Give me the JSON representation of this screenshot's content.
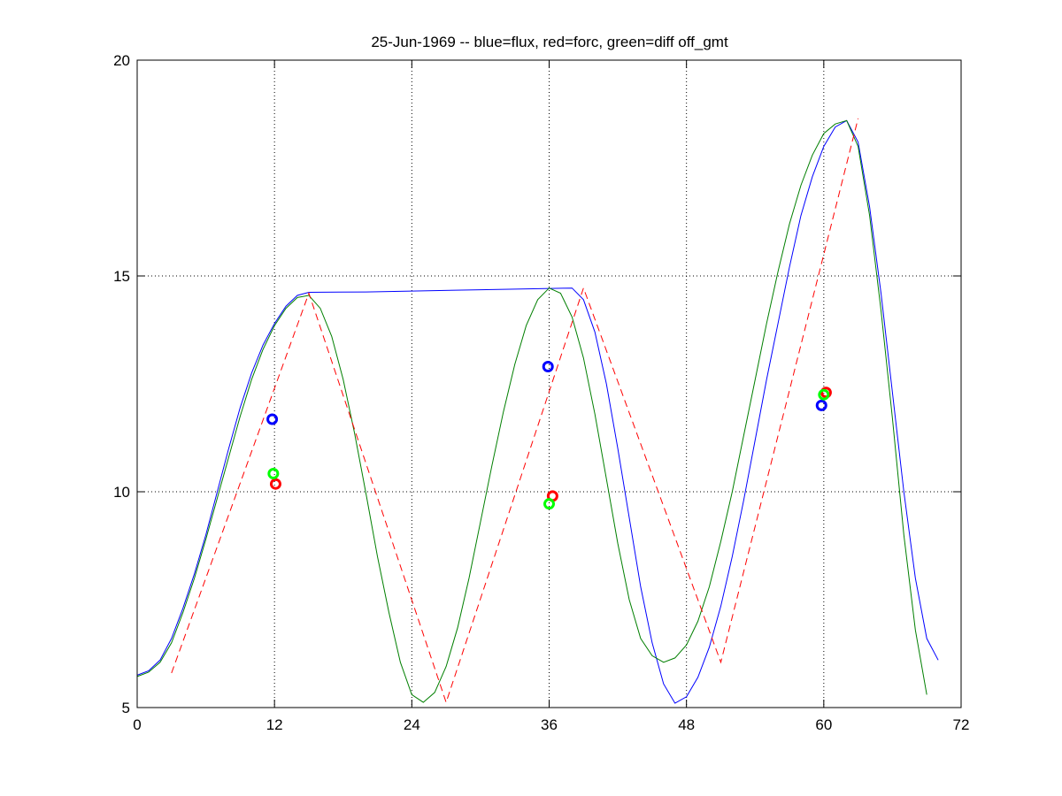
{
  "chart_data": {
    "type": "line",
    "title": "25-Jun-1969 -- blue=flux, red=forc, green=diff off_gmt",
    "xlabel": "",
    "ylabel": "",
    "xlim": [
      0,
      72
    ],
    "ylim": [
      5,
      20
    ],
    "xticks": [
      0,
      12,
      24,
      36,
      48,
      60,
      72
    ],
    "yticks": [
      5,
      10,
      15,
      20
    ],
    "grid": true,
    "grid_style": "dotted",
    "colors": {
      "blue": "#0000ff",
      "red": "#ff0000",
      "green": "#007f00",
      "green_marker": "#00ff00"
    },
    "series": [
      {
        "color": "#0000ff",
        "style": "solid",
        "points": [
          [
            0,
            5.75
          ],
          [
            1,
            5.85
          ],
          [
            2,
            6.1
          ],
          [
            3,
            6.6
          ],
          [
            4,
            7.3
          ],
          [
            5,
            8.1
          ],
          [
            6,
            9.0
          ],
          [
            7,
            10.0
          ],
          [
            8,
            11.0
          ],
          [
            9,
            11.95
          ],
          [
            10,
            12.75
          ],
          [
            11,
            13.4
          ],
          [
            12,
            13.9
          ],
          [
            13,
            14.3
          ],
          [
            14,
            14.55
          ],
          [
            15,
            14.62
          ],
          [
            20,
            14.63
          ],
          [
            30,
            14.68
          ],
          [
            38,
            14.72
          ],
          [
            39,
            14.45
          ],
          [
            40,
            13.7
          ],
          [
            41,
            12.5
          ],
          [
            42,
            11.0
          ],
          [
            43,
            9.4
          ],
          [
            44,
            7.8
          ],
          [
            45,
            6.5
          ],
          [
            46,
            5.55
          ],
          [
            47,
            5.1
          ],
          [
            48,
            5.25
          ],
          [
            49,
            5.7
          ],
          [
            50,
            6.4
          ],
          [
            51,
            7.35
          ],
          [
            52,
            8.5
          ],
          [
            53,
            9.8
          ],
          [
            54,
            11.2
          ],
          [
            55,
            12.6
          ],
          [
            56,
            13.9
          ],
          [
            57,
            15.2
          ],
          [
            58,
            16.4
          ],
          [
            59,
            17.3
          ],
          [
            60,
            18.0
          ],
          [
            61,
            18.45
          ],
          [
            62,
            18.6
          ],
          [
            63,
            18.1
          ],
          [
            64,
            16.6
          ],
          [
            65,
            14.6
          ],
          [
            66,
            12.3
          ],
          [
            67,
            10.0
          ],
          [
            68,
            8.0
          ],
          [
            69,
            6.6
          ],
          [
            70,
            6.1
          ]
        ]
      },
      {
        "color": "#007f00",
        "style": "solid",
        "points": [
          [
            0,
            5.72
          ],
          [
            1,
            5.82
          ],
          [
            2,
            6.05
          ],
          [
            3,
            6.5
          ],
          [
            4,
            7.2
          ],
          [
            5,
            8.0
          ],
          [
            6,
            8.9
          ],
          [
            7,
            9.85
          ],
          [
            8,
            10.8
          ],
          [
            9,
            11.75
          ],
          [
            10,
            12.6
          ],
          [
            11,
            13.3
          ],
          [
            12,
            13.85
          ],
          [
            13,
            14.25
          ],
          [
            14,
            14.5
          ],
          [
            15,
            14.55
          ],
          [
            16,
            14.25
          ],
          [
            17,
            13.6
          ],
          [
            18,
            12.6
          ],
          [
            19,
            11.35
          ],
          [
            20,
            9.95
          ],
          [
            21,
            8.5
          ],
          [
            22,
            7.2
          ],
          [
            23,
            6.05
          ],
          [
            24,
            5.3
          ],
          [
            25,
            5.12
          ],
          [
            26,
            5.35
          ],
          [
            27,
            5.95
          ],
          [
            28,
            6.85
          ],
          [
            29,
            8.0
          ],
          [
            30,
            9.3
          ],
          [
            31,
            10.6
          ],
          [
            32,
            11.85
          ],
          [
            33,
            12.95
          ],
          [
            34,
            13.85
          ],
          [
            35,
            14.45
          ],
          [
            36,
            14.72
          ],
          [
            37,
            14.6
          ],
          [
            38,
            14.05
          ],
          [
            39,
            13.1
          ],
          [
            40,
            11.8
          ],
          [
            41,
            10.3
          ],
          [
            42,
            8.8
          ],
          [
            43,
            7.5
          ],
          [
            44,
            6.6
          ],
          [
            45,
            6.2
          ],
          [
            46,
            6.05
          ],
          [
            47,
            6.15
          ],
          [
            48,
            6.45
          ],
          [
            49,
            7.0
          ],
          [
            50,
            7.8
          ],
          [
            51,
            8.85
          ],
          [
            52,
            10.0
          ],
          [
            53,
            11.3
          ],
          [
            54,
            12.6
          ],
          [
            55,
            13.9
          ],
          [
            56,
            15.1
          ],
          [
            57,
            16.2
          ],
          [
            58,
            17.1
          ],
          [
            59,
            17.8
          ],
          [
            60,
            18.3
          ],
          [
            61,
            18.52
          ],
          [
            62,
            18.6
          ],
          [
            63,
            18.0
          ],
          [
            64,
            16.4
          ],
          [
            65,
            14.2
          ],
          [
            66,
            11.7
          ],
          [
            67,
            9.0
          ],
          [
            68,
            6.8
          ],
          [
            69,
            5.3
          ]
        ]
      },
      {
        "color": "#ff0000",
        "style": "dashed",
        "points": [
          [
            3,
            5.8
          ],
          [
            15,
            14.6
          ],
          [
            27,
            5.12
          ],
          [
            39,
            14.72
          ],
          [
            51,
            6.05
          ],
          [
            63,
            18.65
          ]
        ]
      }
    ],
    "markers": [
      {
        "color": "#0000ff",
        "x": 11.8,
        "y": 11.68
      },
      {
        "color": "#0000ff",
        "x": 35.9,
        "y": 12.9
      },
      {
        "color": "#0000ff",
        "x": 59.8,
        "y": 12.0
      },
      {
        "color": "#ff0000",
        "x": 12.1,
        "y": 10.18
      },
      {
        "color": "#ff0000",
        "x": 36.3,
        "y": 9.9
      },
      {
        "color": "#ff0000",
        "x": 60.2,
        "y": 12.3
      },
      {
        "color": "#00ff00",
        "x": 11.9,
        "y": 10.42
      },
      {
        "color": "#00ff00",
        "x": 36.0,
        "y": 9.72
      },
      {
        "color": "#00ff00",
        "x": 60.0,
        "y": 12.25
      }
    ]
  }
}
